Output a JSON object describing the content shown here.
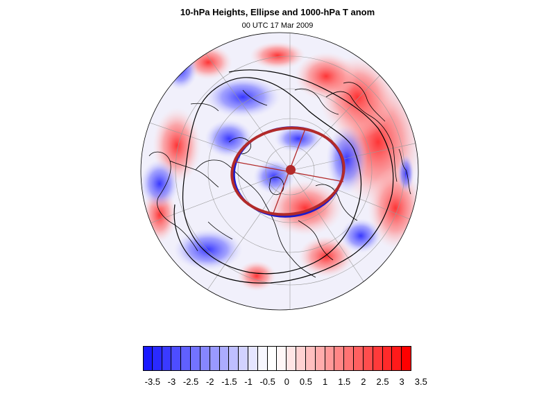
{
  "header": {
    "title": "10-hPa Heights, Ellipse and 1000-hPa T anom",
    "subtitle": "00 UTC 17 Mar 2009"
  },
  "map": {
    "projection": "north-polar-stereographic",
    "fill_field": "1000-hPa T anom",
    "contour_field": "10-hPa Heights",
    "overlay": "ellipse",
    "colors": {
      "ellipse": "#b22a2a",
      "ellipse_inner": "#1a1acc",
      "contour": "#000000",
      "coastline": "#000000",
      "graticule": "#9a9a9a"
    }
  },
  "colorbar": {
    "colors": [
      "#1a1aff",
      "#2a2aff",
      "#3a3aff",
      "#4d4dff",
      "#6060ff",
      "#7373ff",
      "#8686ff",
      "#9999ff",
      "#acacff",
      "#bfbfff",
      "#d2d2ff",
      "#e5e5ff",
      "#f7f7ff",
      "#ffffff",
      "#fff7f7",
      "#ffe5e5",
      "#ffd2d2",
      "#ffbfbf",
      "#ffacac",
      "#ff9999",
      "#ff8686",
      "#ff7373",
      "#ff6060",
      "#ff4d4d",
      "#ff3a3a",
      "#ff2a2a",
      "#ff1a1a",
      "#ff0000"
    ],
    "labels": [
      "-3.5",
      "-3",
      "-2.5",
      "-2",
      "-1.5",
      "-1",
      "-0.5",
      "0",
      "0.5",
      "1",
      "1.5",
      "2",
      "2.5",
      "3",
      "3.5"
    ]
  }
}
